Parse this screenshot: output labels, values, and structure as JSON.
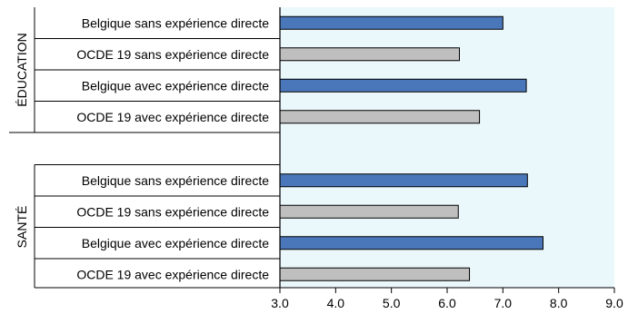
{
  "chart_data": {
    "type": "bar",
    "orientation": "horizontal",
    "xlim": [
      3.0,
      9.0
    ],
    "x_ticks": [
      "3.0",
      "4.0",
      "5.0",
      "6.0",
      "7.0",
      "8.0",
      "9.0"
    ],
    "colors": {
      "belgique": "#4a77b9",
      "ocde": "#bfbfbf",
      "plot_bg": "#eaf7fb"
    },
    "groups": [
      {
        "label": "ÉDUCATION",
        "bars": [
          {
            "category": "Belgique sans expérience directe",
            "value": 7.0,
            "series": "belgique"
          },
          {
            "category": "OCDE 19 sans expérience directe",
            "value": 6.22,
            "series": "ocde"
          },
          {
            "category": "Belgique avec expérience directe",
            "value": 7.42,
            "series": "belgique"
          },
          {
            "category": "OCDE 19 avec expérience directe",
            "value": 6.58,
            "series": "ocde"
          }
        ]
      },
      {
        "label": "SANTÉ",
        "bars": [
          {
            "category": "Belgique sans expérience directe",
            "value": 7.44,
            "series": "belgique"
          },
          {
            "category": "OCDE 19 sans expérience directe",
            "value": 6.2,
            "series": "ocde"
          },
          {
            "category": "Belgique avec expérience directe",
            "value": 7.72,
            "series": "belgique"
          },
          {
            "category": "OCDE 19 avec expérience directe",
            "value": 6.4,
            "series": "ocde"
          }
        ]
      }
    ]
  }
}
